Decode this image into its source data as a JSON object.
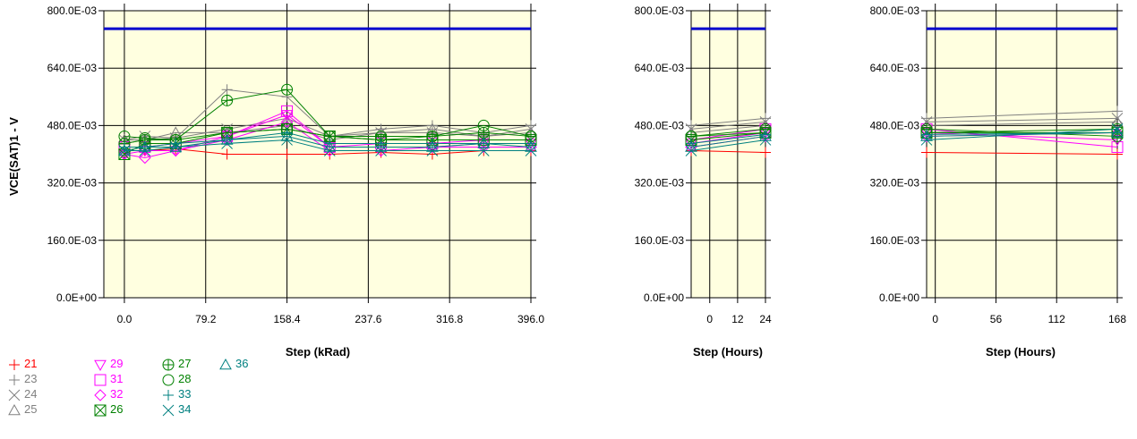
{
  "chart_data": [
    {
      "type": "line",
      "ylabel": "VCE(SAT)1 - V",
      "xlabel": "Step (kRad)",
      "x_tick_labels": [
        "0.0",
        "79.2",
        "158.4",
        "237.6",
        "316.8",
        "396.0"
      ],
      "y_tick_labels": [
        "0.0E+00",
        "160.0E-03",
        "320.0E-03",
        "480.0E-03",
        "640.0E-03",
        "800.0E-03"
      ],
      "xlim": [
        -20,
        396
      ],
      "ylim": [
        0,
        0.8
      ],
      "grid": true,
      "limit_line": 0.75,
      "x": [
        0,
        20,
        50,
        100,
        158.4,
        200,
        250,
        300,
        350,
        396
      ],
      "series": [
        {
          "name": "21",
          "values": [
            0.41,
            0.41,
            0.415,
            0.4,
            0.4,
            0.4,
            0.405,
            0.4,
            0.41,
            0.41
          ]
        },
        {
          "name": "23",
          "values": [
            0.43,
            0.44,
            0.445,
            0.58,
            0.56,
            0.45,
            0.47,
            0.48,
            0.46,
            0.48
          ]
        },
        {
          "name": "24",
          "values": [
            0.44,
            0.45,
            0.445,
            0.47,
            0.5,
            0.45,
            0.46,
            0.46,
            0.45,
            0.47
          ]
        },
        {
          "name": "25",
          "values": [
            0.44,
            0.44,
            0.46,
            0.46,
            0.48,
            0.44,
            0.46,
            0.47,
            0.45,
            0.46
          ]
        },
        {
          "name": "29",
          "values": [
            0.4,
            0.41,
            0.41,
            0.45,
            0.51,
            0.42,
            0.42,
            0.42,
            0.43,
            0.43
          ]
        },
        {
          "name": "31",
          "values": [
            0.42,
            0.42,
            0.43,
            0.45,
            0.52,
            0.42,
            0.43,
            0.43,
            0.44,
            0.44
          ]
        },
        {
          "name": "32",
          "values": [
            0.4,
            0.39,
            0.41,
            0.44,
            0.49,
            0.41,
            0.41,
            0.42,
            0.42,
            0.42
          ]
        },
        {
          "name": "27",
          "values": [
            0.43,
            0.44,
            0.44,
            0.55,
            0.58,
            0.45,
            0.44,
            0.45,
            0.46,
            0.45
          ]
        },
        {
          "name": "28",
          "values": [
            0.45,
            0.445,
            0.44,
            0.46,
            0.47,
            0.45,
            0.45,
            0.45,
            0.48,
            0.45
          ]
        },
        {
          "name": "26",
          "values": [
            0.4,
            0.43,
            0.43,
            0.46,
            0.47,
            0.45,
            0.44,
            0.44,
            0.44,
            0.44
          ]
        },
        {
          "name": "33",
          "values": [
            0.42,
            0.42,
            0.43,
            0.44,
            0.46,
            0.43,
            0.43,
            0.43,
            0.43,
            0.43
          ]
        },
        {
          "name": "34",
          "values": [
            0.41,
            0.41,
            0.42,
            0.43,
            0.44,
            0.41,
            0.41,
            0.41,
            0.41,
            0.41
          ]
        },
        {
          "name": "36",
          "values": [
            0.41,
            0.42,
            0.42,
            0.44,
            0.45,
            0.42,
            0.42,
            0.42,
            0.43,
            0.42
          ]
        }
      ]
    },
    {
      "type": "line",
      "xlabel": "Step (Hours)",
      "x_tick_labels": [
        "0",
        "12",
        "24"
      ],
      "y_tick_labels": [
        "0.0E+00",
        "160.0E-03",
        "320.0E-03",
        "480.0E-03",
        "640.0E-03",
        "800.0E-03"
      ],
      "xlim": [
        -8,
        24
      ],
      "ylim": [
        0,
        0.8
      ],
      "grid": true,
      "limit_line": 0.75,
      "x": [
        -8,
        24
      ],
      "series": [
        {
          "name": "21",
          "values": [
            0.41,
            0.405
          ]
        },
        {
          "name": "23",
          "values": [
            0.48,
            0.5
          ]
        },
        {
          "name": "24",
          "values": [
            0.47,
            0.49
          ]
        },
        {
          "name": "25",
          "values": [
            0.46,
            0.48
          ]
        },
        {
          "name": "29",
          "values": [
            0.43,
            0.46
          ]
        },
        {
          "name": "31",
          "values": [
            0.44,
            0.47
          ]
        },
        {
          "name": "32",
          "values": [
            0.42,
            0.45
          ]
        },
        {
          "name": "27",
          "values": [
            0.45,
            0.47
          ]
        },
        {
          "name": "28",
          "values": [
            0.45,
            0.46
          ]
        },
        {
          "name": "26",
          "values": [
            0.44,
            0.46
          ]
        },
        {
          "name": "33",
          "values": [
            0.43,
            0.455
          ]
        },
        {
          "name": "34",
          "values": [
            0.41,
            0.44
          ]
        },
        {
          "name": "36",
          "values": [
            0.42,
            0.45
          ]
        }
      ]
    },
    {
      "type": "line",
      "xlabel": "Step (Hours)",
      "x_tick_labels": [
        "0",
        "56",
        "112",
        "168"
      ],
      "y_tick_labels": [
        "0.0E+00",
        "160.0E-03",
        "320.0E-03",
        "480.0E-03",
        "640.0E-03",
        "800.0E-03"
      ],
      "xlim": [
        -8,
        168
      ],
      "ylim": [
        0,
        0.8
      ],
      "grid": true,
      "limit_line": 0.75,
      "x": [
        -8,
        168
      ],
      "series": [
        {
          "name": "21",
          "values": [
            0.405,
            0.4
          ]
        },
        {
          "name": "23",
          "values": [
            0.5,
            0.52
          ]
        },
        {
          "name": "24",
          "values": [
            0.49,
            0.5
          ]
        },
        {
          "name": "25",
          "values": [
            0.48,
            0.49
          ]
        },
        {
          "name": "29",
          "values": [
            0.46,
            0.44
          ]
        },
        {
          "name": "31",
          "values": [
            0.47,
            0.42
          ]
        },
        {
          "name": "32",
          "values": [
            0.45,
            0.46
          ]
        },
        {
          "name": "27",
          "values": [
            0.47,
            0.45
          ]
        },
        {
          "name": "28",
          "values": [
            0.46,
            0.47
          ]
        },
        {
          "name": "26",
          "values": [
            0.46,
            0.46
          ]
        },
        {
          "name": "33",
          "values": [
            0.455,
            0.46
          ]
        },
        {
          "name": "34",
          "values": [
            0.44,
            0.47
          ]
        },
        {
          "name": "36",
          "values": [
            0.45,
            0.46
          ]
        }
      ]
    }
  ],
  "legend": [
    {
      "id": "21",
      "label": "21",
      "marker": "plus",
      "color": "#ff0000"
    },
    {
      "id": "23",
      "label": "23",
      "marker": "plus",
      "color": "#808080"
    },
    {
      "id": "24",
      "label": "24",
      "marker": "x",
      "color": "#808080"
    },
    {
      "id": "25",
      "label": "25",
      "marker": "triangle-up",
      "color": "#808080"
    },
    {
      "id": "29",
      "label": "29",
      "marker": "triangle-down",
      "color": "#ff00ff"
    },
    {
      "id": "31",
      "label": "31",
      "marker": "square",
      "color": "#ff00ff"
    },
    {
      "id": "32",
      "label": "32",
      "marker": "diamond",
      "color": "#ff00ff"
    },
    {
      "id": "26",
      "label": "26",
      "marker": "square-x",
      "color": "#008000"
    },
    {
      "id": "27",
      "label": "27",
      "marker": "circle-plus",
      "color": "#008000"
    },
    {
      "id": "28",
      "label": "28",
      "marker": "circle",
      "color": "#008000"
    },
    {
      "id": "33",
      "label": "33",
      "marker": "plus",
      "color": "#008080"
    },
    {
      "id": "34",
      "label": "34",
      "marker": "x",
      "color": "#008080"
    },
    {
      "id": "36",
      "label": "36",
      "marker": "triangle-up",
      "color": "#008080"
    }
  ],
  "colors": {
    "plot_bg": "#ffffe0",
    "limit": "#0000cc",
    "grid": "#000000"
  }
}
